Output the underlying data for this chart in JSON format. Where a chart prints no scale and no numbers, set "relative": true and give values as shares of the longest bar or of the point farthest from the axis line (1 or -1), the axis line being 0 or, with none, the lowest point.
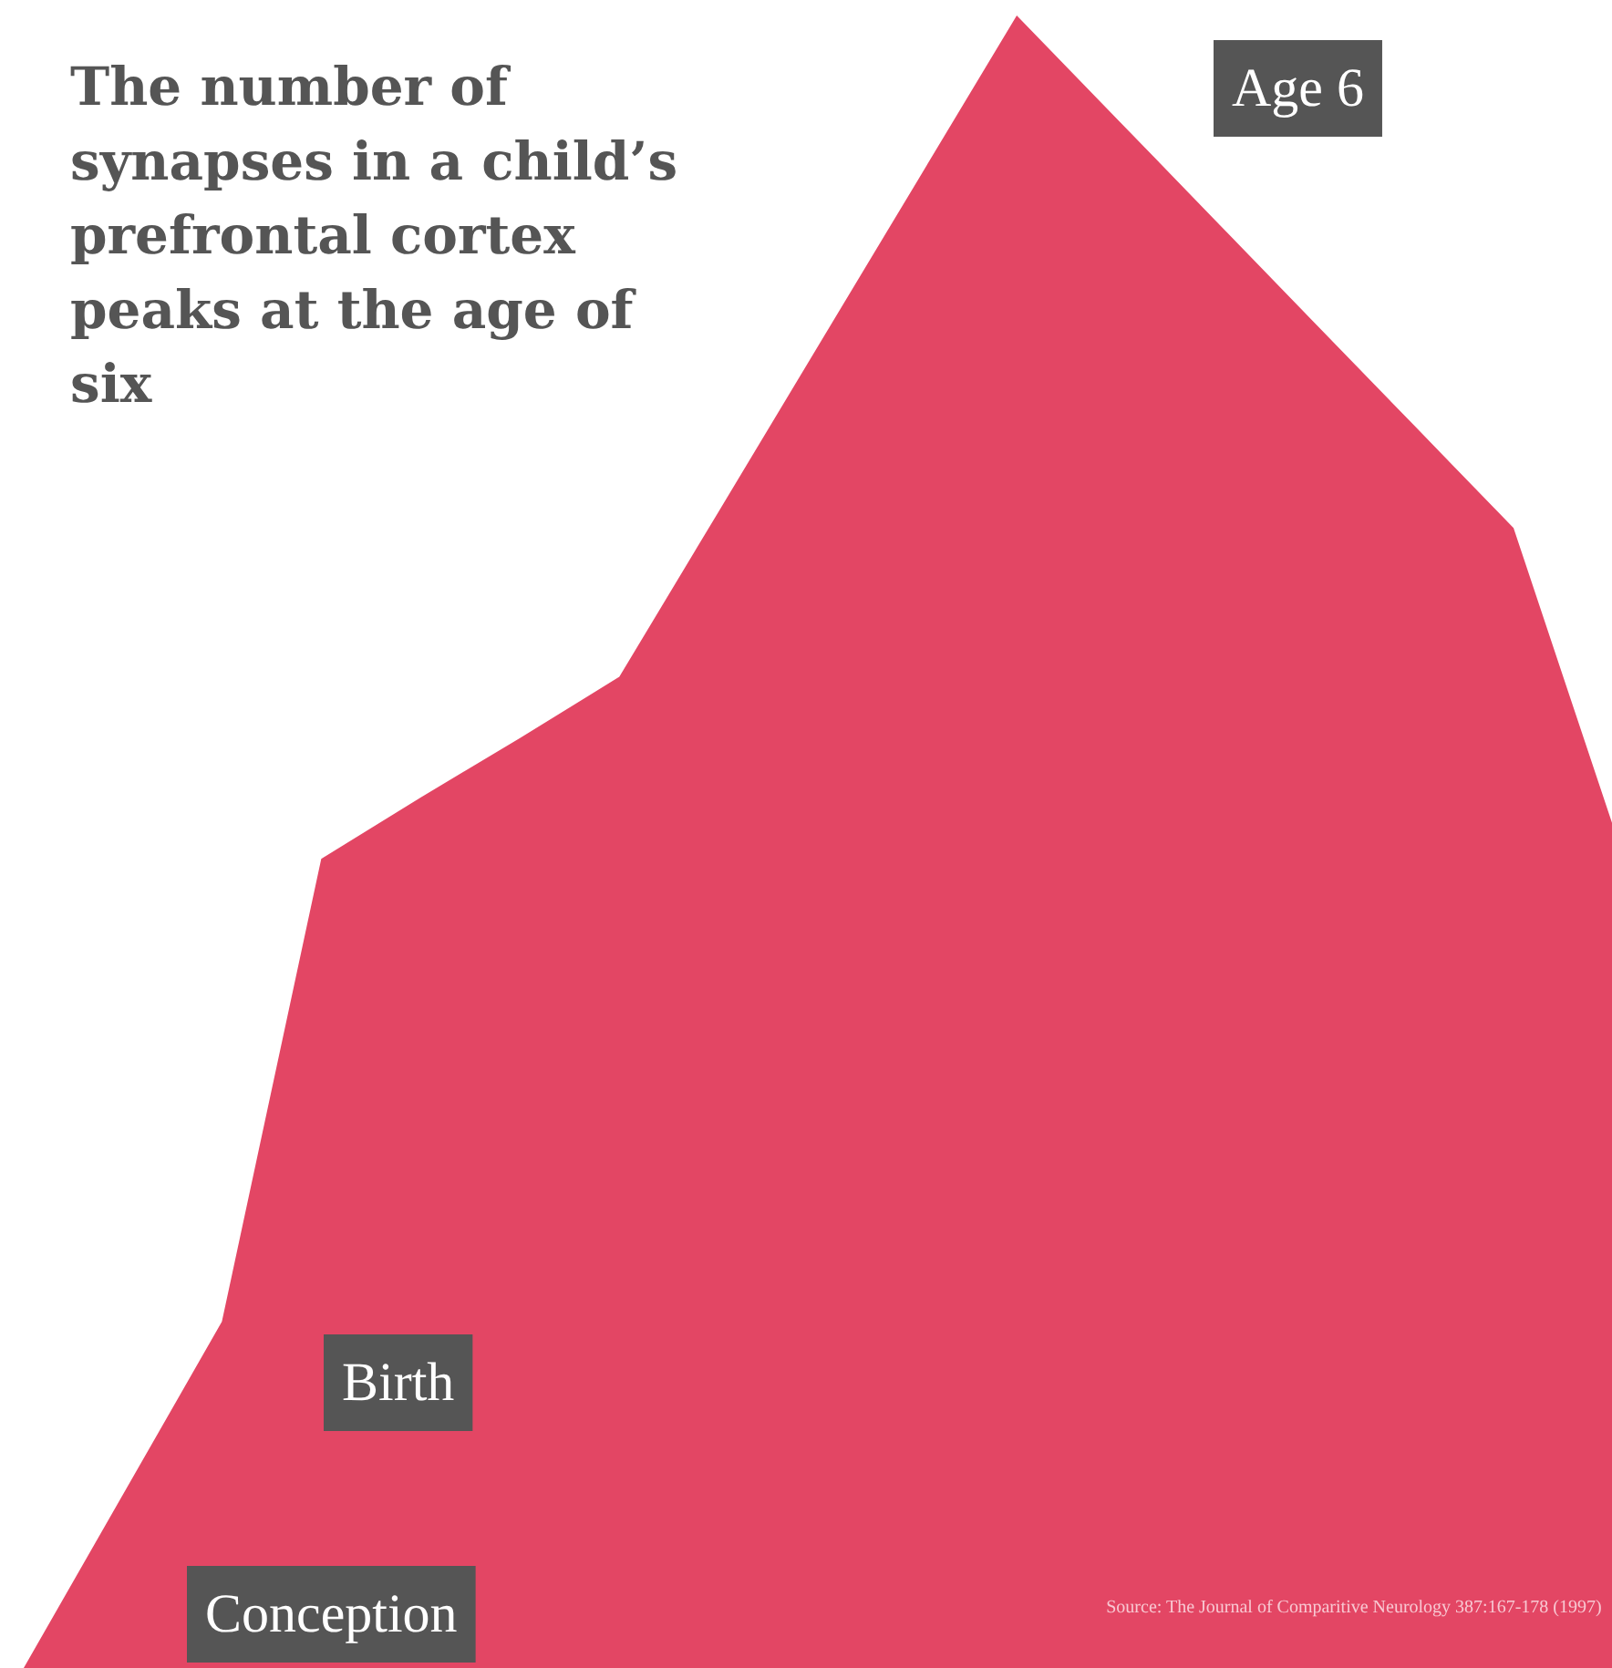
{
  "chart_data": {
    "type": "area",
    "relative": true,
    "title": "The number of synapses in a child’s prefrontal cortex peaks at the age of six",
    "categories": [
      null,
      null,
      null,
      null,
      null,
      null,
      null,
      null,
      null,
      null,
      null,
      null,
      null,
      null,
      null,
      null,
      null
    ],
    "series": [
      {
        "color": "#e34664",
        "values": [
          0.0,
          0.105,
          0.21,
          0.49,
          0.527,
          0.563,
          0.6,
          0.7,
          0.8,
          0.9,
          1.0,
          0.938,
          0.876,
          0.814,
          0.752,
          0.69,
          0.51
        ]
      }
    ],
    "annotations": [
      "Conception",
      "Birth",
      "Age 6",
      "Source: The Journal of Comparitive Neurology 387:167-178 (1997)"
    ]
  }
}
